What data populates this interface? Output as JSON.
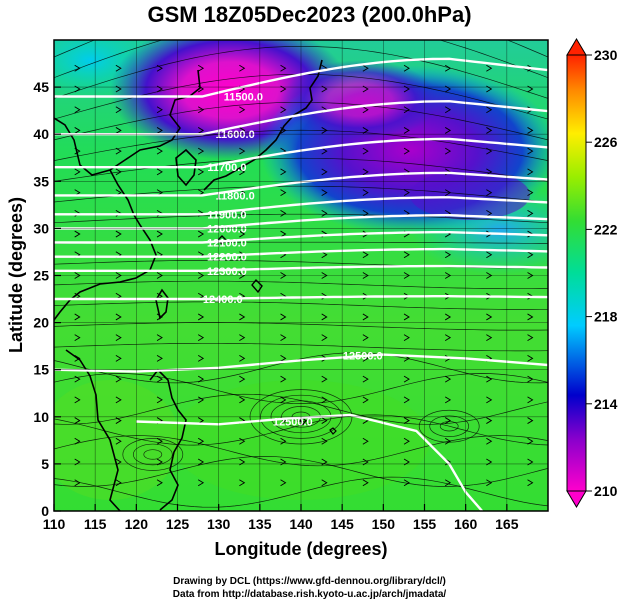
{
  "title": "GSM 18Z05Dec2023 (200.0hPa)",
  "map": {
    "xlabel": "Longitude (degrees)",
    "ylabel": "Latitude (degrees)",
    "xlim": [
      110,
      170
    ],
    "ylim": [
      0,
      50
    ],
    "xticks": [
      "110",
      "115",
      "120",
      "125",
      "130",
      "135",
      "140",
      "145",
      "150",
      "155",
      "160",
      "165"
    ],
    "xtick_values": [
      110,
      115,
      120,
      125,
      130,
      135,
      140,
      145,
      150,
      155,
      160,
      165
    ],
    "yticks": [
      "0",
      "5",
      "10",
      "15",
      "20",
      "25",
      "30",
      "35",
      "40",
      "45"
    ],
    "ytick_values": [
      0,
      5,
      10,
      15,
      20,
      25,
      30,
      35,
      40,
      45
    ],
    "grid": true,
    "field": "temperature shading with streamlines and geopotential height contours"
  },
  "colorbar": {
    "labels": [
      "230",
      "226",
      "222",
      "218",
      "214",
      "210"
    ],
    "values": [
      230,
      226,
      222,
      218,
      214,
      210
    ],
    "range": [
      210,
      230
    ],
    "colors": [
      "#ff00cc",
      "#0000cc",
      "#00ccff",
      "#33dd33",
      "#ffee00",
      "#ff2200"
    ]
  },
  "contours": [
    {
      "label": "11500.0",
      "lon": 133,
      "lat": 44
    },
    {
      "label": "11600.0",
      "lon": 132,
      "lat": 40
    },
    {
      "label": "11700.0",
      "lon": 131,
      "lat": 36.5
    },
    {
      "label": "11800.0",
      "lon": 132,
      "lat": 33.5
    },
    {
      "label": "11900.0",
      "lon": 131,
      "lat": 31.5
    },
    {
      "label": "12000.0",
      "lon": 131,
      "lat": 30
    },
    {
      "label": "12100.0",
      "lon": 131,
      "lat": 28.5
    },
    {
      "label": "12200.0",
      "lon": 131,
      "lat": 27
    },
    {
      "label": "12300.0",
      "lon": 131,
      "lat": 25.5
    },
    {
      "label": "12400.0",
      "lon": 130.5,
      "lat": 22.5
    },
    {
      "label": "12500.0",
      "lon": 147.5,
      "lat": 16.5
    },
    {
      "label": "12500.0",
      "lon": 139,
      "lat": 9.5
    }
  ],
  "credits": {
    "line1": "Drawing by DCL (https://www.gfd-dennou.org/library/dcl/)",
    "line2": "Data from http://database.rish.kyoto-u.ac.jp/arch/jmadata/"
  },
  "colors": {
    "accent_green": "#33dd33",
    "contour_line": "#ffffff",
    "coast_line": "#000000"
  }
}
